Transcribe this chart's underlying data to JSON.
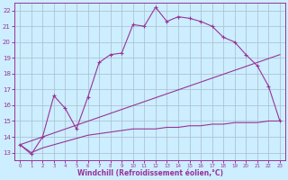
{
  "xlabel": "Windchill (Refroidissement éolien,°C)",
  "background_color": "#cceeff",
  "grid_color": "#aabbcc",
  "line_color": "#993399",
  "xlim": [
    -0.5,
    23.5
  ],
  "ylim": [
    12.5,
    22.5
  ],
  "xticks": [
    0,
    1,
    2,
    3,
    4,
    5,
    6,
    7,
    8,
    9,
    10,
    11,
    12,
    13,
    14,
    15,
    16,
    17,
    18,
    19,
    20,
    21,
    22,
    23
  ],
  "yticks": [
    13,
    14,
    15,
    16,
    17,
    18,
    19,
    20,
    21,
    22
  ],
  "line1_x": [
    0,
    1,
    2,
    3,
    4,
    5,
    6,
    7,
    8,
    9,
    10,
    11,
    12,
    13,
    14,
    15,
    16,
    17,
    18,
    19,
    20,
    21,
    22,
    23
  ],
  "line1_y": [
    13.5,
    12.9,
    14.0,
    16.6,
    15.8,
    14.5,
    16.5,
    18.7,
    19.2,
    19.3,
    21.1,
    21.0,
    22.2,
    21.3,
    21.6,
    21.5,
    21.3,
    21.0,
    20.3,
    20.0,
    19.2,
    18.5,
    17.2,
    15.0
  ],
  "line2_x": [
    0,
    23
  ],
  "line2_y": [
    13.5,
    19.2
  ],
  "line3_x": [
    0,
    1,
    2,
    3,
    4,
    5,
    6,
    7,
    8,
    9,
    10,
    11,
    12,
    13,
    14,
    15,
    16,
    17,
    18,
    19,
    20,
    21,
    22,
    23
  ],
  "line3_y": [
    13.5,
    13.0,
    13.3,
    13.5,
    13.7,
    13.9,
    14.1,
    14.2,
    14.3,
    14.4,
    14.5,
    14.5,
    14.5,
    14.6,
    14.6,
    14.7,
    14.7,
    14.8,
    14.8,
    14.9,
    14.9,
    14.9,
    15.0,
    15.0
  ]
}
